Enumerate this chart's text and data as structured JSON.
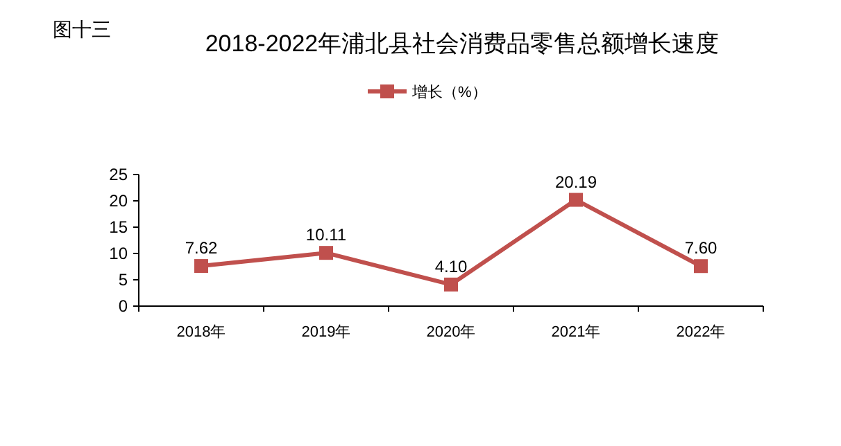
{
  "chart_data": {
    "type": "line",
    "title": "2018-2022年浦北县社会消费品零售总额增长速度",
    "annotations": [
      "图十三"
    ],
    "categories": [
      "2018年",
      "2019年",
      "2020年",
      "2021年",
      "2022年"
    ],
    "series": [
      {
        "name": "增长（%）",
        "color": "#c0504d",
        "values": [
          7.62,
          10.11,
          4.1,
          20.19,
          7.6
        ],
        "value_labels": [
          "7.62",
          "10.11",
          "4.10",
          "20.19",
          "7.60"
        ]
      }
    ],
    "ylim": [
      0,
      25
    ],
    "yticks": [
      0,
      5,
      10,
      15,
      20,
      25
    ],
    "grid": false,
    "legend": "top",
    "marker": "square",
    "line_style": "solid"
  }
}
